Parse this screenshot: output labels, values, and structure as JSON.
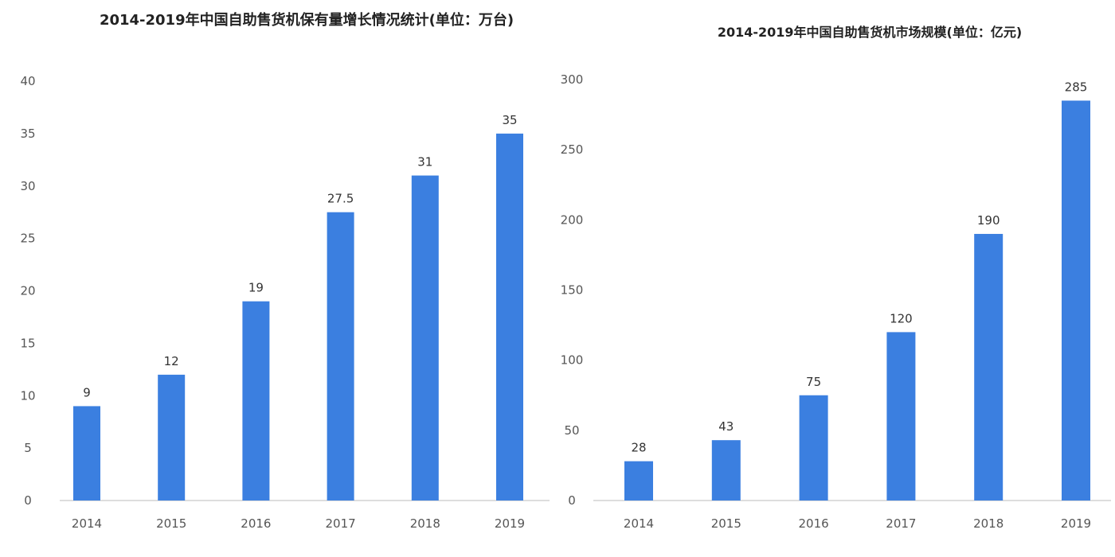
{
  "chart_data": [
    {
      "type": "bar",
      "title": "2014-2019年中国自助售货机保有量增长情况统计(单位：万台)",
      "categories": [
        "2014",
        "2015",
        "2016",
        "2017",
        "2018",
        "2019"
      ],
      "values": [
        9,
        12,
        19,
        27.5,
        31,
        35
      ],
      "data_labels": [
        "9",
        "12",
        "19",
        "27.5",
        "31",
        "35"
      ],
      "ylim": [
        0,
        40
      ],
      "yticks": [
        "0",
        "5",
        "10",
        "15",
        "20",
        "25",
        "30",
        "35",
        "40"
      ],
      "xlabel": "",
      "ylabel": "",
      "grid": false,
      "color": "#3b7fe0"
    },
    {
      "type": "bar",
      "title": "2014-2019年中国自助售货机市场规模(单位：亿元)",
      "categories": [
        "2014",
        "2015",
        "2016",
        "2017",
        "2018",
        "2019"
      ],
      "values": [
        28,
        43,
        75,
        120,
        190,
        285
      ],
      "data_labels": [
        "28",
        "43",
        "75",
        "120",
        "190",
        "285"
      ],
      "ylim": [
        0,
        300
      ],
      "yticks": [
        "0",
        "50",
        "100",
        "150",
        "200",
        "250",
        "300"
      ],
      "xlabel": "",
      "ylabel": "",
      "grid": false,
      "color": "#3b7fe0"
    }
  ]
}
